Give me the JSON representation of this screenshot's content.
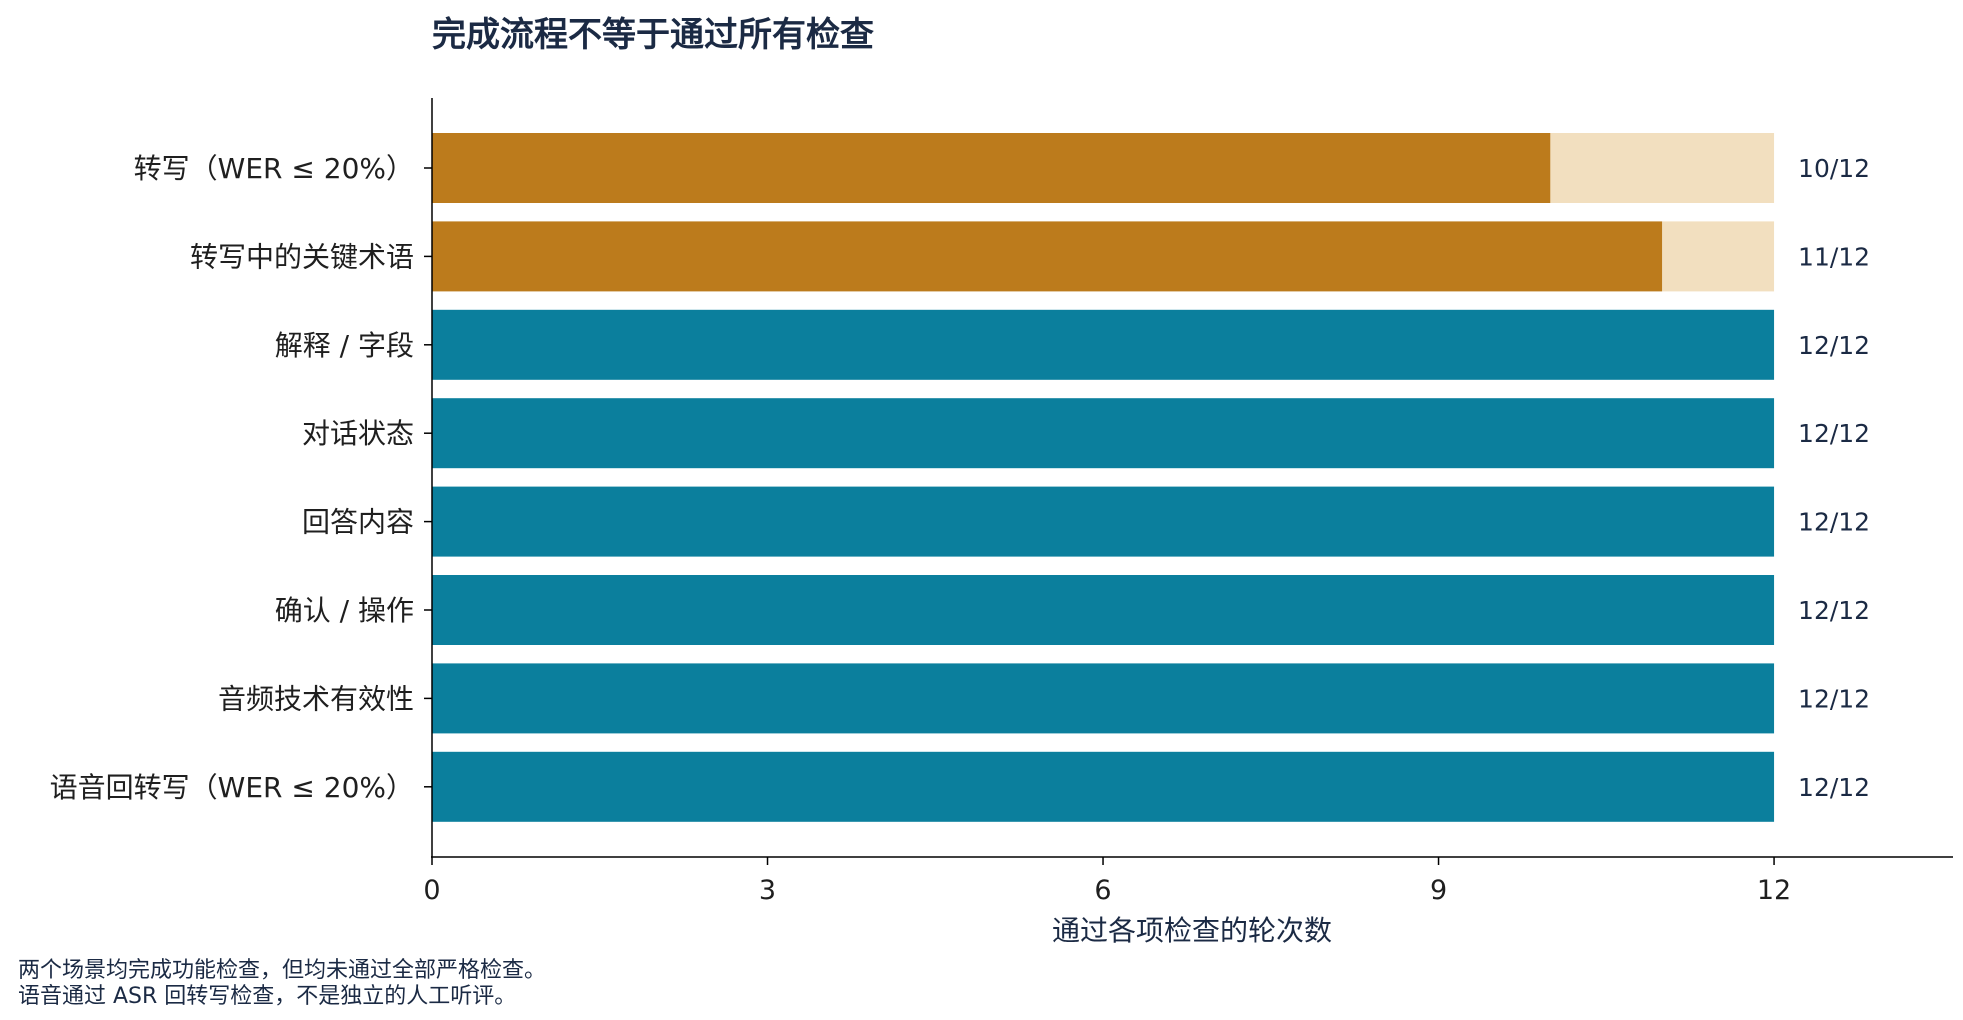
{
  "chart_data": {
    "type": "bar",
    "orientation": "horizontal",
    "stacked": true,
    "title": "完成流程不等于通过所有检查",
    "xlabel": "通过各项检查的轮次数",
    "ylabel": "",
    "xlim": [
      0,
      13.6
    ],
    "xticks": [
      0,
      3,
      6,
      9,
      12
    ],
    "xtick_labels": [
      "0",
      "3",
      "6",
      "9",
      "12"
    ],
    "grid": false,
    "legend": "none",
    "categories": [
      "转写（WER ≤ 20%）",
      "转写中的关键术语",
      "解释 / 字段",
      "对话状态",
      "回答内容",
      "确认 / 操作",
      "音频技术有效性",
      "语音回转写（WER ≤ 20%）"
    ],
    "values": [
      10,
      11,
      12,
      12,
      12,
      12,
      12,
      12
    ],
    "totals": [
      12,
      12,
      12,
      12,
      12,
      12,
      12,
      12
    ],
    "value_labels": [
      "10/12",
      "11/12",
      "12/12",
      "12/12",
      "12/12",
      "12/12",
      "12/12",
      "12/12"
    ],
    "bar_colors": [
      "#bc7b1c",
      "#bc7b1c",
      "#0b7f9d",
      "#0b7f9d",
      "#0b7f9d",
      "#0b7f9d",
      "#0b7f9d",
      "#0b7f9d"
    ],
    "remainder_color": "#f2dfbf"
  },
  "footnote": {
    "lines": [
      "两个场景均完成功能检查，但均未通过全部严格检查。",
      "语音通过 ASR 回转写检查，不是独立的人工听评。"
    ]
  }
}
